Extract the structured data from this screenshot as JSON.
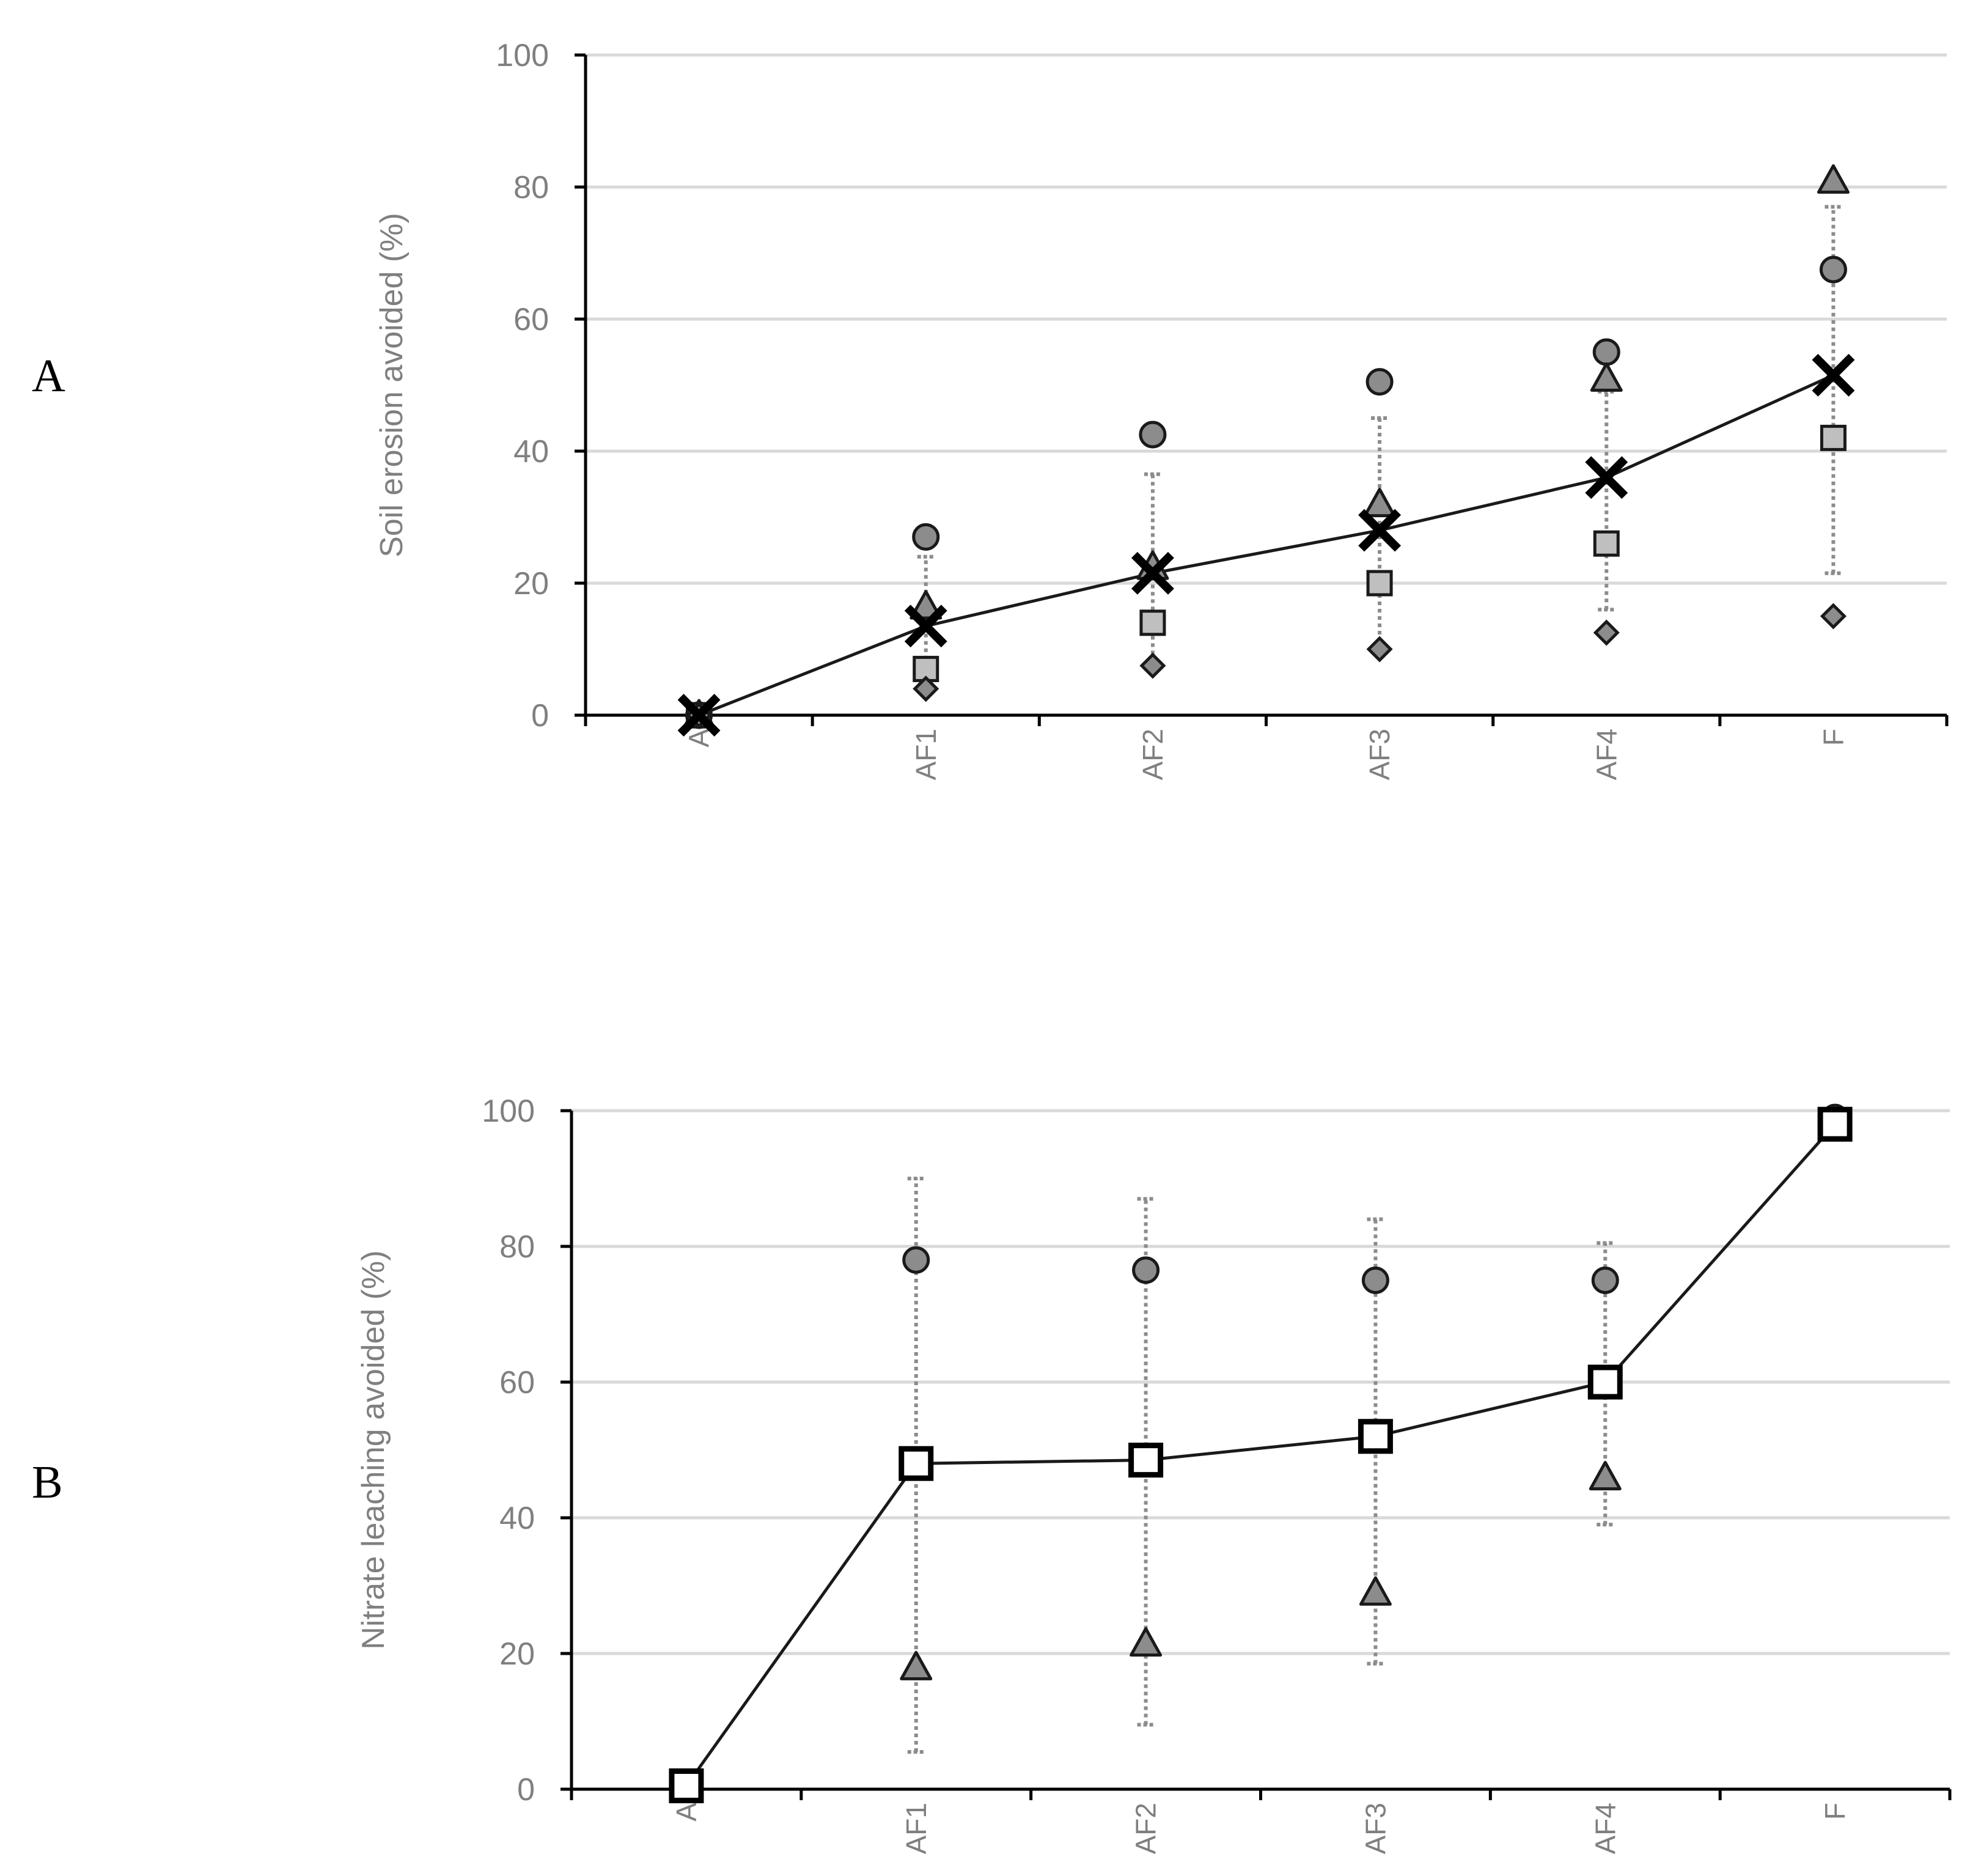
{
  "chart_data": [
    {
      "panel": "A",
      "type": "scatter",
      "ylabel": "Soil erosion avoided  (%)",
      "ylim": [
        0,
        100
      ],
      "yticks": [
        "0",
        "20",
        "40",
        "60",
        "80",
        "100"
      ],
      "categories": [
        "A",
        "AF1",
        "AF2",
        "AF3",
        "AF4",
        "F"
      ],
      "grid": true,
      "mean": {
        "marker": "x",
        "line": true,
        "values": [
          0,
          13.5,
          21.5,
          28,
          36,
          51.5
        ]
      },
      "series": [
        {
          "marker": "circle",
          "values": [
            0,
            27,
            42.5,
            50.5,
            55,
            67.5
          ]
        },
        {
          "marker": "triangle",
          "values": [
            0,
            16.5,
            22.5,
            32,
            51,
            81
          ]
        },
        {
          "marker": "square",
          "values": [
            0,
            7,
            14,
            20,
            26,
            42
          ]
        },
        {
          "marker": "diamond",
          "values": [
            0,
            4,
            7.5,
            10,
            12.5,
            15
          ]
        }
      ],
      "range": {
        "low": [
          null,
          4,
          7,
          10,
          16,
          21.5
        ],
        "high": [
          null,
          24,
          36.5,
          45,
          49,
          77
        ]
      }
    },
    {
      "panel": "B",
      "type": "scatter",
      "ylabel": "Nitrate leaching avoided (%)",
      "ylim": [
        0,
        100
      ],
      "yticks": [
        "0",
        "20",
        "40",
        "60",
        "80",
        "100"
      ],
      "categories": [
        "A",
        "AF1",
        "AF2",
        "AF3",
        "AF4",
        "F"
      ],
      "grid": true,
      "mean": {
        "marker": "square-open",
        "line": true,
        "values": [
          0.5,
          48,
          48.5,
          52,
          60,
          98
        ]
      },
      "series": [
        {
          "marker": "circle",
          "values": [
            0.5,
            78,
            76.5,
            75,
            75,
            99
          ]
        },
        {
          "marker": "triangle",
          "values": [
            0.5,
            18,
            21.5,
            29,
            46,
            97.5
          ]
        }
      ],
      "range": {
        "low": [
          null,
          5.5,
          9.5,
          18.5,
          39,
          null
        ],
        "high": [
          null,
          90,
          87,
          84,
          80.5,
          null
        ]
      }
    }
  ]
}
